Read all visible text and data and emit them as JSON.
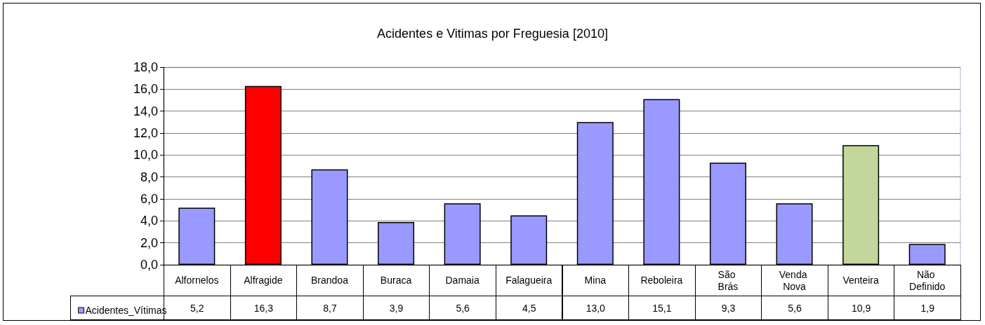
{
  "chart_data": {
    "type": "bar",
    "title": "Acidentes e Vitimas por Freguesia [2010]",
    "categories": [
      "Alfornelos",
      "Alfragide",
      "Brandoa",
      "Buraca",
      "Damaia",
      "Falagueira",
      "Mina",
      "Reboleira",
      "São Brás",
      "Venda Nova",
      "Venteira",
      "Não Definido"
    ],
    "series": [
      {
        "name": "Acidentes_Vítimas",
        "color": "#9999ff",
        "colors": [
          "#9999ff",
          "#ff0000",
          "#9999ff",
          "#9999ff",
          "#9999ff",
          "#9999ff",
          "#9999ff",
          "#9999ff",
          "#9999ff",
          "#9999ff",
          "#c3d69b",
          "#9999ff"
        ],
        "values": [
          5.2,
          16.3,
          8.7,
          3.9,
          5.6,
          4.5,
          13.0,
          15.1,
          9.3,
          5.6,
          10.9,
          1.9
        ],
        "value_labels": [
          "5,2",
          "16,3",
          "8,7",
          "3,9",
          "5,6",
          "4,5",
          "13,0",
          "15,1",
          "9,3",
          "5,6",
          "10,9",
          "1,9"
        ]
      }
    ],
    "ylim": [
      0,
      18
    ],
    "yticks": [
      {
        "value": 0,
        "label": "0,0"
      },
      {
        "value": 2,
        "label": "2,0"
      },
      {
        "value": 4,
        "label": "4,0"
      },
      {
        "value": 6,
        "label": "6,0"
      },
      {
        "value": 8,
        "label": "8,0"
      },
      {
        "value": 10,
        "label": "10,0"
      },
      {
        "value": 12,
        "label": "12,0"
      },
      {
        "value": 14,
        "label": "14,0"
      },
      {
        "value": 16,
        "label": "16,0"
      },
      {
        "value": 18,
        "label": "18,0"
      }
    ],
    "grid": "y",
    "legend": "bottom left"
  }
}
